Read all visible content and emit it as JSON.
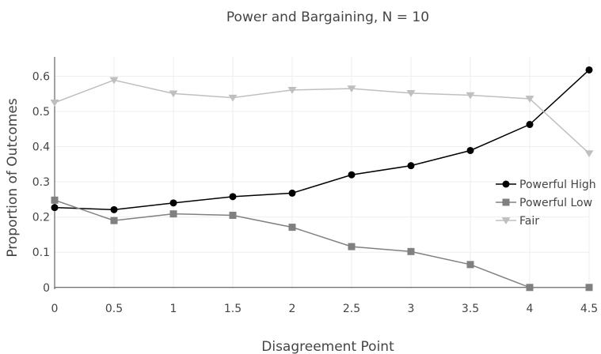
{
  "chart_data": {
    "type": "line",
    "title": "Power and Bargaining, N = 10",
    "xlabel": "Disagreement Point",
    "ylabel": "Proportion of Outcomes",
    "x": [
      0,
      0.5,
      1,
      1.5,
      2,
      2.5,
      3,
      3.5,
      4,
      4.5
    ],
    "xticks": [
      "0",
      "0.5",
      "1",
      "1.5",
      "2",
      "2.5",
      "3",
      "3.5",
      "4",
      "4.5"
    ],
    "yticks": [
      "0",
      "0.1",
      "0.2",
      "0.3",
      "0.4",
      "0.5",
      "0.6"
    ],
    "xlim": [
      0,
      4.5
    ],
    "ylim": [
      -0.005,
      0.655
    ],
    "grid": true,
    "legend_position": "right",
    "series": [
      {
        "name": "Powerful High",
        "marker": "circle",
        "color": "#000000",
        "values": [
          0.227,
          0.221,
          0.24,
          0.258,
          0.268,
          0.32,
          0.346,
          0.389,
          0.463,
          0.618
        ]
      },
      {
        "name": "Powerful Low",
        "marker": "square",
        "color": "#808080",
        "values": [
          0.248,
          0.19,
          0.209,
          0.205,
          0.171,
          0.116,
          0.102,
          0.065,
          0.0,
          0.0
        ]
      },
      {
        "name": "Fair",
        "marker": "triangle-down",
        "color": "#bfbfbf",
        "values": [
          0.525,
          0.589,
          0.551,
          0.539,
          0.561,
          0.565,
          0.552,
          0.546,
          0.536,
          0.381
        ]
      }
    ]
  }
}
